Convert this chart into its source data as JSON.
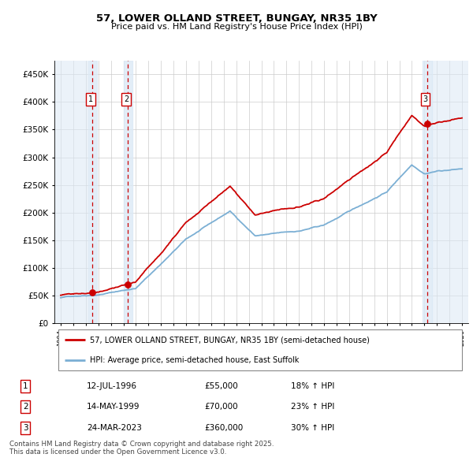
{
  "title_line1": "57, LOWER OLLAND STREET, BUNGAY, NR35 1BY",
  "title_line2": "Price paid vs. HM Land Registry's House Price Index (HPI)",
  "ylim": [
    0,
    475000
  ],
  "xlim_start": 1993.5,
  "xlim_end": 2026.5,
  "bg_color": "#ffffff",
  "grid_color": "#cccccc",
  "hpi_line_color": "#7bafd4",
  "price_line_color": "#cc0000",
  "shade_color": "#dce9f5",
  "hatch_left_color": "#c8d8e8",
  "purchase_dates": [
    1996.53,
    1999.37,
    2023.23
  ],
  "purchase_prices": [
    55000,
    70000,
    360000
  ],
  "purchase_labels": [
    "1",
    "2",
    "3"
  ],
  "legend_price_label": "57, LOWER OLLAND STREET, BUNGAY, NR35 1BY (semi-detached house)",
  "legend_hpi_label": "HPI: Average price, semi-detached house, East Suffolk",
  "table_rows": [
    [
      "1",
      "12-JUL-1996",
      "£55,000",
      "18% ↑ HPI"
    ],
    [
      "2",
      "14-MAY-1999",
      "£70,000",
      "23% ↑ HPI"
    ],
    [
      "3",
      "24-MAR-2023",
      "£360,000",
      "30% ↑ HPI"
    ]
  ],
  "footer_text": "Contains HM Land Registry data © Crown copyright and database right 2025.\nThis data is licensed under the Open Government Licence v3.0.",
  "ytick_labels": [
    "£0",
    "£50K",
    "£100K",
    "£150K",
    "£200K",
    "£250K",
    "£300K",
    "£350K",
    "£400K",
    "£450K"
  ],
  "ytick_values": [
    0,
    50000,
    100000,
    150000,
    200000,
    250000,
    300000,
    350000,
    400000,
    450000
  ]
}
